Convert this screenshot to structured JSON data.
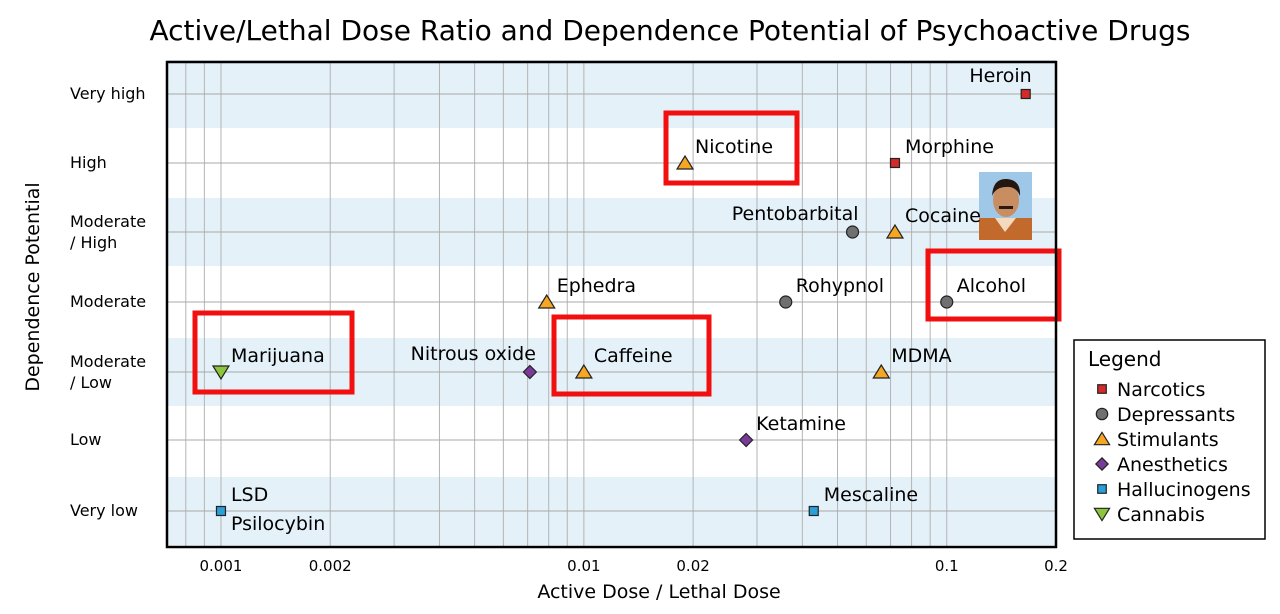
{
  "chart_data": {
    "type": "scatter",
    "title": "Active/Lethal Dose Ratio and Dependence Potential of Psychoactive Drugs",
    "xlabel": "Active Dose / Lethal Dose",
    "ylabel": "Dependence Potential",
    "x_scale": "log",
    "xlim": [
      0.00071,
      0.2
    ],
    "x_ticks": [
      {
        "value": 0.001,
        "label": "0.001"
      },
      {
        "value": 0.002,
        "label": "0.002"
      },
      {
        "value": 0.01,
        "label": "0.01"
      },
      {
        "value": 0.02,
        "label": "0.02"
      },
      {
        "value": 0.1,
        "label": "0.1"
      },
      {
        "value": 0.2,
        "label": "0.2"
      }
    ],
    "y_categories": [
      "Very low",
      "Low",
      "Moderate\n/ Low",
      "Moderate",
      "Moderate\n/ High",
      "High",
      "Very high"
    ],
    "grid": true,
    "legend": {
      "title": "Legend",
      "position": "right",
      "entries": [
        {
          "name": "Narcotics",
          "marker": "square",
          "color": "#d42a2a"
        },
        {
          "name": "Depressants",
          "marker": "circle",
          "color": "#707070"
        },
        {
          "name": "Stimulants",
          "marker": "triangle-up",
          "color": "#f5a623"
        },
        {
          "name": "Anesthetics",
          "marker": "diamond",
          "color": "#7a3a9a"
        },
        {
          "name": "Hallucinogens",
          "marker": "square",
          "color": "#2b9fd8"
        },
        {
          "name": "Cannabis",
          "marker": "triangle-down",
          "color": "#8cc43c"
        }
      ]
    },
    "points": [
      {
        "name": "Heroin",
        "x": 0.165,
        "y": 6,
        "class": "Narcotics",
        "label_pos": "above-left"
      },
      {
        "name": "Morphine",
        "x": 0.072,
        "y": 5,
        "class": "Narcotics",
        "label_pos": "above-right"
      },
      {
        "name": "Nicotine",
        "x": 0.019,
        "y": 5,
        "class": "Stimulants",
        "label_pos": "above-right",
        "highlighted": true
      },
      {
        "name": "Pentobarbital",
        "x": 0.055,
        "y": 4,
        "class": "Depressants",
        "label_pos": "above-left"
      },
      {
        "name": "Cocaine",
        "x": 0.072,
        "y": 4,
        "class": "Stimulants",
        "label_pos": "above-right"
      },
      {
        "name": "Ephedra",
        "x": 0.0079,
        "y": 3,
        "class": "Stimulants",
        "label_pos": "above-right"
      },
      {
        "name": "Rohypnol",
        "x": 0.036,
        "y": 3,
        "class": "Depressants",
        "label_pos": "above-right"
      },
      {
        "name": "Alcohol",
        "x": 0.1,
        "y": 3,
        "class": "Depressants",
        "label_pos": "above-right",
        "highlighted": true
      },
      {
        "name": "Marijuana",
        "x": 0.001,
        "y": 2,
        "class": "Cannabis",
        "label_pos": "above-right",
        "highlighted": true
      },
      {
        "name": "Nitrous oxide",
        "x": 0.0071,
        "y": 2,
        "class": "Anesthetics",
        "label_pos": "above-left"
      },
      {
        "name": "Caffeine",
        "x": 0.01,
        "y": 2,
        "class": "Stimulants",
        "label_pos": "above-right",
        "highlighted": true
      },
      {
        "name": "MDMA",
        "x": 0.066,
        "y": 2,
        "class": "Stimulants",
        "label_pos": "above-right"
      },
      {
        "name": "Ketamine",
        "x": 0.028,
        "y": 1,
        "class": "Anesthetics",
        "label_pos": "above-right"
      },
      {
        "name": "LSD",
        "x": 0.001,
        "y": 0,
        "class": "Hallucinogens",
        "label_pos": "above-right"
      },
      {
        "name": "Psilocybin",
        "x": 0.001,
        "y": 0,
        "class": "Hallucinogens",
        "label_pos": "below-right"
      },
      {
        "name": "Mescaline",
        "x": 0.043,
        "y": 0,
        "class": "Hallucinogens",
        "label_pos": "above-right"
      }
    ]
  }
}
